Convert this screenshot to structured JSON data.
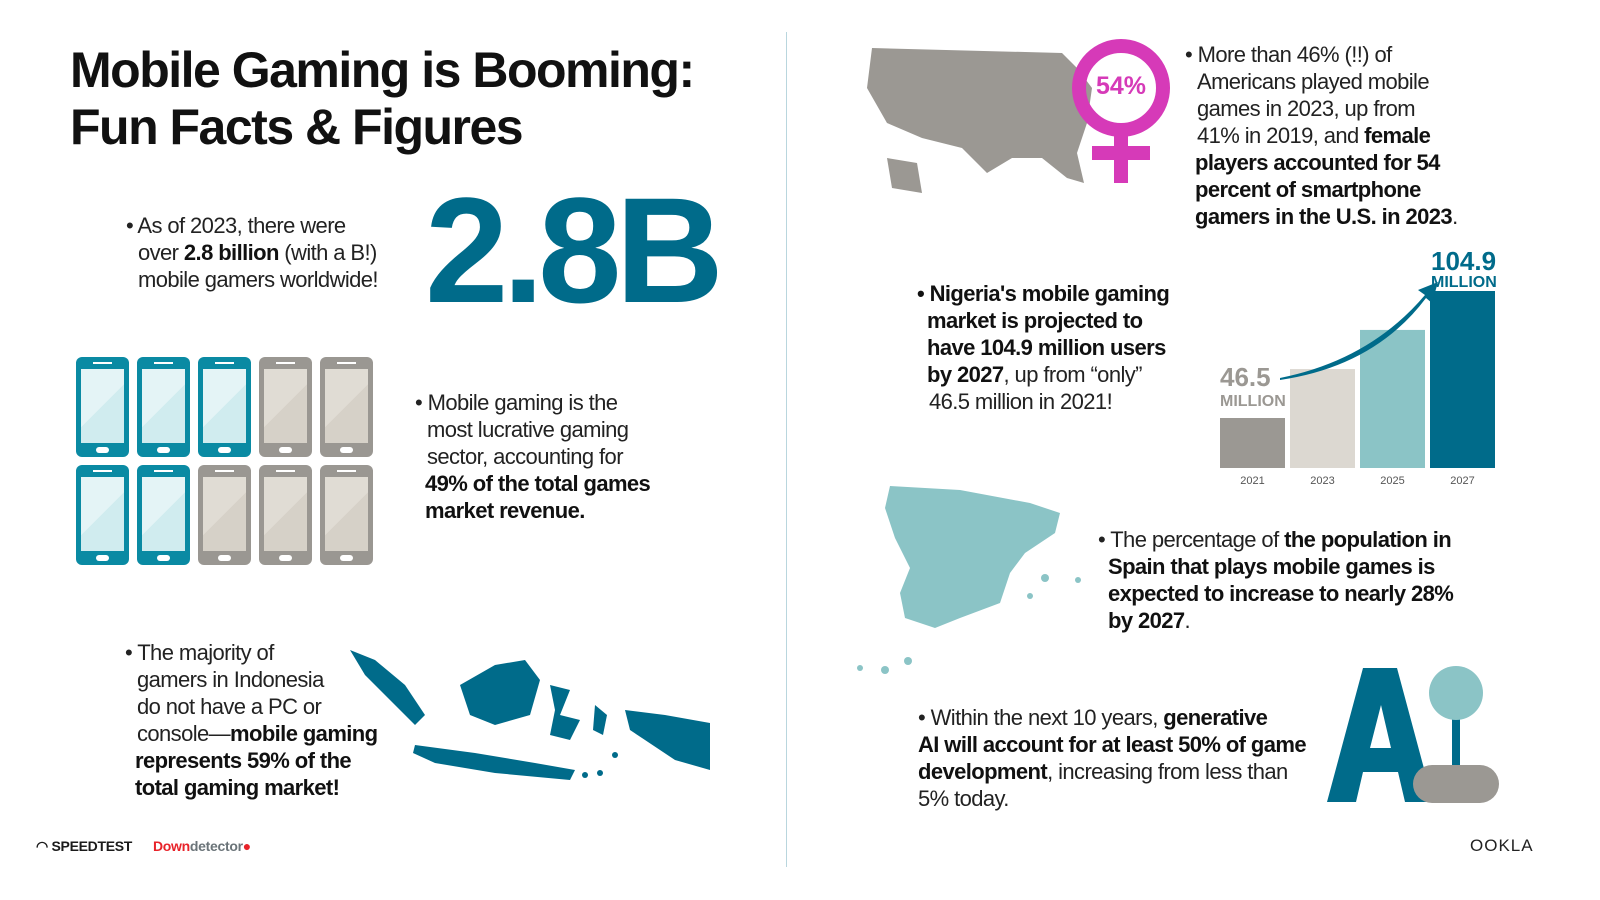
{
  "title": {
    "line1": "Mobile Gaming is Booming:",
    "line2": "Fun Facts & Figures"
  },
  "fact_gamers": {
    "pre": "• As of 2023, there were",
    "l2a": "over ",
    "l2b": "2.8 billion",
    "l2c": " (with a B!)",
    "l3": "mobile gamers worldwide!",
    "big": "2.8B"
  },
  "fact_revenue": {
    "l1": "• Mobile gaming is the",
    "l2": "most lucrative gaming",
    "l3": "sector, accounting for",
    "l4": "49% of the total games",
    "l5": "market revenue.",
    "phones_total": 10,
    "phones_highlighted": 5
  },
  "fact_indonesia": {
    "l1": "• The majority of",
    "l2": "gamers in Indonesia",
    "l3": "do not have a PC or",
    "l4a": "console—",
    "l4b": "mobile gaming",
    "l5": "represents 59% of the",
    "l6": "total gaming market!"
  },
  "fact_us": {
    "badge": "54%",
    "l1": "• More than 46% (!!) of",
    "l2": "Americans played mobile",
    "l3": "games in 2023, up from",
    "l4a": "41% in 2019, and ",
    "l4b": "female",
    "l5": "players accounted for 54",
    "l6": "percent of smartphone",
    "l7": "gamers in the U.S. in 2023",
    "l7end": "."
  },
  "fact_nigeria": {
    "l1": "• Nigeria's mobile gaming",
    "l2": "market is projected to",
    "l3": "have 104.9 million users",
    "l4a": "by 2027",
    "l4b": ", up from “only”",
    "l5": "46.5 million in 2021!"
  },
  "chart_data": {
    "type": "bar",
    "categories": [
      "2021",
      "2023",
      "2025",
      "2027"
    ],
    "values": [
      46.5,
      69,
      87,
      104.9
    ],
    "unit": "MILLION",
    "data_labels": {
      "2021": "46.5",
      "2027": "104.9"
    },
    "colors": [
      "#9b9893",
      "#dcd8d1",
      "#8bc4c6",
      "#006b8a"
    ],
    "grid": false,
    "arrow": true
  },
  "chart_labels": {
    "first_value": "46.5",
    "first_unit": "MILLION",
    "last_value": "104.9",
    "last_unit": "MILLION"
  },
  "fact_spain": {
    "l1a": "• The percentage of ",
    "l1b": "the population in",
    "l2": "Spain that plays mobile games is",
    "l3": "expected to increase to nearly 28%",
    "l4": "by 2027",
    "l4end": "."
  },
  "fact_ai": {
    "l1a": "• Within the next 10 years, ",
    "l1b": "generative",
    "l2": "AI will account for at least 50% of game",
    "l3a": "development",
    "l3b": ", increasing from less than",
    "l4": "5% today.",
    "logo": "AI"
  },
  "footer": {
    "speedtest": "SPEEDTEST",
    "down": "Down",
    "detector": "detector",
    "ookla": "OOKLA"
  },
  "colors": {
    "teal_dark": "#006b8a",
    "teal_light": "#8bc4c6",
    "magenta": "#d63ab8",
    "gray": "#9b9893"
  }
}
